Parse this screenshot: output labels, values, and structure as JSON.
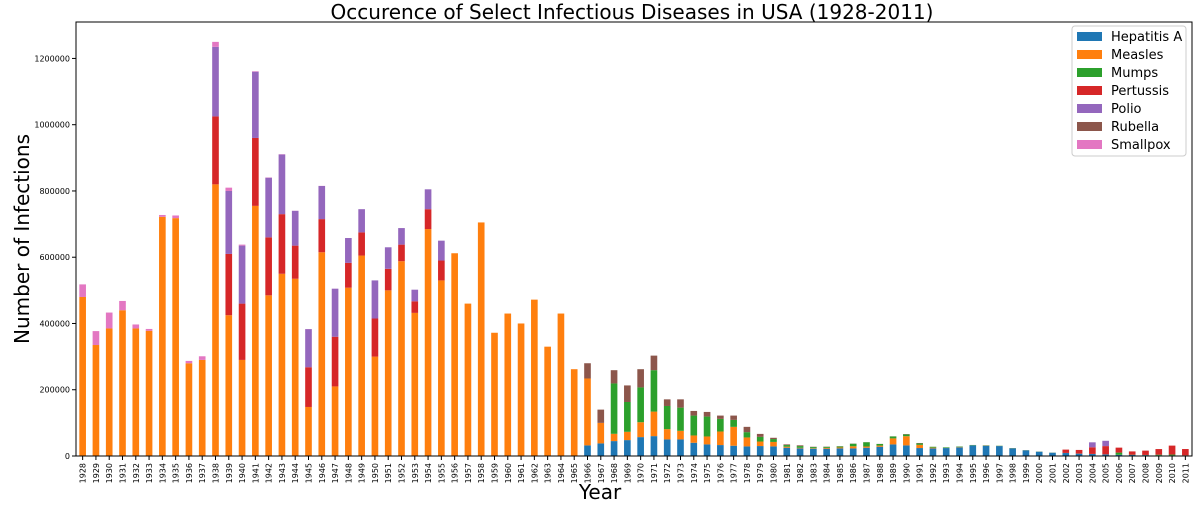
{
  "chart_data": {
    "type": "bar",
    "stacked": true,
    "title": "Occurence of Select Infectious Diseases in USA (1928-2011)",
    "xlabel": "Year",
    "ylabel": "Number of Infections",
    "ylim": [
      0,
      1310000
    ],
    "yticks": [
      0,
      200000,
      400000,
      600000,
      800000,
      1000000,
      1200000
    ],
    "legend_position": "top-right",
    "colors": {
      "Hepatitis A": "#1f77b4",
      "Measles": "#ff7f0e",
      "Mumps": "#2ca02c",
      "Pertussis": "#d62728",
      "Polio": "#9467bd",
      "Rubella": "#8c564b",
      "Smallpox": "#e377c2"
    },
    "categories": [
      "1928",
      "1929",
      "1930",
      "1931",
      "1932",
      "1933",
      "1934",
      "1935",
      "1936",
      "1937",
      "1938",
      "1939",
      "1940",
      "1941",
      "1942",
      "1943",
      "1944",
      "1945",
      "1946",
      "1947",
      "1948",
      "1949",
      "1950",
      "1951",
      "1952",
      "1953",
      "1954",
      "1955",
      "1956",
      "1957",
      "1958",
      "1959",
      "1960",
      "1961",
      "1962",
      "1963",
      "1964",
      "1965",
      "1966",
      "1967",
      "1968",
      "1969",
      "1970",
      "1971",
      "1972",
      "1973",
      "1974",
      "1975",
      "1976",
      "1977",
      "1978",
      "1979",
      "1980",
      "1981",
      "1982",
      "1983",
      "1984",
      "1985",
      "1986",
      "1987",
      "1988",
      "1989",
      "1990",
      "1991",
      "1992",
      "1993",
      "1994",
      "1995",
      "1996",
      "1997",
      "1998",
      "1999",
      "2000",
      "2001",
      "2002",
      "2003",
      "2004",
      "2005",
      "2006",
      "2007",
      "2008",
      "2009",
      "2010",
      "2011"
    ],
    "series": [
      {
        "name": "Hepatitis A",
        "values": [
          0,
          0,
          0,
          0,
          0,
          0,
          0,
          0,
          0,
          0,
          0,
          0,
          0,
          0,
          0,
          0,
          0,
          0,
          0,
          0,
          0,
          0,
          0,
          0,
          0,
          0,
          0,
          0,
          0,
          0,
          0,
          0,
          0,
          0,
          0,
          0,
          0,
          0,
          32000,
          38000,
          45000,
          48000,
          57000,
          60000,
          50000,
          50000,
          40000,
          35000,
          33000,
          31000,
          29000,
          30000,
          29000,
          25000,
          23000,
          22000,
          22000,
          23000,
          23000,
          25000,
          28000,
          35000,
          32000,
          24000,
          23000,
          24000,
          26000,
          32000,
          31000,
          30000,
          23000,
          17000,
          13000,
          10000,
          9000,
          7000,
          6000,
          4500,
          3600,
          3000,
          2600,
          1900,
          1700,
          1400
        ]
      },
      {
        "name": "Measles",
        "values": [
          480000,
          335000,
          385000,
          440000,
          385000,
          378000,
          722000,
          718000,
          280000,
          290000,
          820000,
          425000,
          290000,
          755000,
          485000,
          550000,
          535000,
          148000,
          615000,
          210000,
          508000,
          605000,
          300000,
          500000,
          588000,
          432000,
          685000,
          530000,
          612000,
          460000,
          705000,
          372000,
          430000,
          400000,
          472000,
          330000,
          430000,
          262000,
          202000,
          62000,
          22000,
          25000,
          45000,
          74000,
          31000,
          26000,
          22000,
          24000,
          41000,
          57000,
          27000,
          13700,
          13500,
          3100,
          1700,
          1500,
          2600,
          2800,
          6300,
          3700,
          3400,
          18200,
          27800,
          9600,
          2200,
          312,
          963,
          309,
          508,
          138,
          89,
          100,
          86,
          116,
          44,
          56,
          37,
          66,
          55,
          43,
          140,
          71,
          63,
          220
        ]
      },
      {
        "name": "Mumps",
        "values": [
          0,
          0,
          0,
          0,
          0,
          0,
          0,
          0,
          0,
          0,
          0,
          0,
          0,
          0,
          0,
          0,
          0,
          0,
          0,
          0,
          0,
          0,
          0,
          0,
          0,
          0,
          0,
          0,
          0,
          0,
          0,
          0,
          0,
          0,
          0,
          0,
          0,
          0,
          0,
          0,
          152000,
          90000,
          105000,
          125000,
          70000,
          70000,
          60000,
          60000,
          38000,
          21000,
          16000,
          14000,
          8600,
          4900,
          5200,
          3400,
          3000,
          3000,
          7800,
          12800,
          4900,
          5700,
          5300,
          4300,
          2600,
          1700,
          1500,
          906,
          750,
          683,
          666,
          387,
          338,
          266,
          270,
          231,
          258,
          314,
          6584,
          800,
          454,
          1991,
          2612,
          404
        ]
      },
      {
        "name": "Pertussis",
        "values": [
          0,
          0,
          0,
          0,
          0,
          0,
          0,
          0,
          0,
          0,
          205000,
          185000,
          170000,
          205000,
          175000,
          180000,
          100000,
          120000,
          100000,
          150000,
          75000,
          70000,
          115000,
          65000,
          50000,
          35000,
          60000,
          60000,
          0,
          0,
          0,
          0,
          0,
          0,
          0,
          0,
          0,
          0,
          0,
          0,
          0,
          0,
          0,
          0,
          0,
          0,
          0,
          0,
          0,
          0,
          0,
          0,
          0,
          0,
          0,
          0,
          0,
          0,
          0,
          0,
          0,
          0,
          0,
          0,
          0,
          0,
          0,
          0,
          0,
          0,
          0,
          0,
          0,
          0,
          10000,
          11000,
          20000,
          25000,
          15000,
          10000,
          13000,
          17000,
          27000,
          19000
        ]
      },
      {
        "name": "Polio",
        "values": [
          0,
          0,
          0,
          0,
          0,
          0,
          0,
          0,
          0,
          0,
          210000,
          190000,
          175000,
          200000,
          180000,
          180000,
          105000,
          115000,
          100000,
          145000,
          75000,
          70000,
          115000,
          65000,
          50000,
          35000,
          60000,
          60000,
          0,
          0,
          0,
          0,
          0,
          0,
          0,
          0,
          0,
          0,
          0,
          0,
          0,
          0,
          0,
          0,
          0,
          0,
          0,
          0,
          0,
          0,
          0,
          0,
          0,
          0,
          0,
          0,
          0,
          0,
          0,
          0,
          0,
          0,
          0,
          0,
          0,
          0,
          0,
          0,
          0,
          0,
          0,
          0,
          0,
          0,
          0,
          0,
          15000,
          16000,
          0,
          0,
          0,
          0,
          0,
          0
        ]
      },
      {
        "name": "Rubella",
        "values": [
          0,
          0,
          0,
          0,
          0,
          0,
          0,
          0,
          0,
          0,
          0,
          0,
          0,
          0,
          0,
          0,
          0,
          0,
          0,
          0,
          0,
          0,
          0,
          0,
          0,
          0,
          0,
          0,
          0,
          0,
          0,
          0,
          0,
          0,
          0,
          0,
          0,
          0,
          46000,
          40000,
          40000,
          50000,
          55000,
          44000,
          20000,
          25000,
          14000,
          14000,
          10000,
          13000,
          16000,
          9000,
          3900,
          2100,
          2300,
          970,
          750,
          630,
          550,
          310,
          230,
          400,
          1100,
          1400,
          160,
          190,
          230,
          130,
          240,
          180,
          360,
          270,
          180,
          20,
          20,
          10,
          15,
          15,
          20,
          20,
          15,
          15,
          10,
          5
        ]
      },
      {
        "name": "Smallpox",
        "values": [
          38000,
          42000,
          48000,
          28000,
          12000,
          5500,
          5500,
          8000,
          7000,
          11000,
          15000,
          10000,
          3000,
          1400,
          900,
          800,
          400,
          350,
          340,
          175,
          50,
          50,
          40,
          10,
          20,
          0,
          0,
          0,
          0,
          0,
          0,
          0,
          0,
          0,
          0,
          0,
          0,
          0,
          0,
          0,
          0,
          0,
          0,
          0,
          0,
          0,
          0,
          0,
          0,
          0,
          0,
          0,
          0,
          0,
          0,
          0,
          0,
          0,
          0,
          0,
          0,
          0,
          0,
          0,
          0,
          0,
          0,
          0,
          0,
          0,
          0,
          0,
          0,
          0,
          0,
          0,
          0,
          0,
          0,
          0,
          0,
          0,
          0,
          0
        ]
      }
    ]
  }
}
